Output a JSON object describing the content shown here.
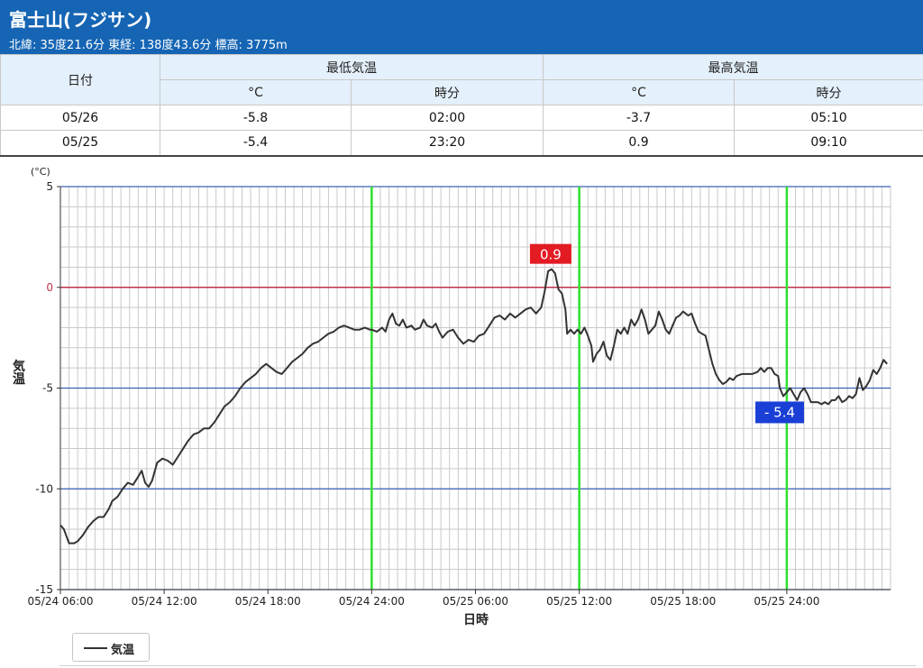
{
  "header": {
    "title": "富士山(フジサン)",
    "subtitle": "北緯: 35度21.6分 東経: 138度43.6分 標高: 3775m"
  },
  "table": {
    "date_header": "日付",
    "min_header": "最低気温",
    "max_header": "最高気温",
    "unit_header": "°C",
    "time_header": "時分",
    "rows": [
      {
        "date": "05/26",
        "min_c": "-5.8",
        "min_time": "02:00",
        "max_c": "-3.7",
        "max_time": "05:10"
      },
      {
        "date": "05/25",
        "min_c": "-5.4",
        "min_time": "23:20",
        "max_c": "0.9",
        "max_time": "09:10"
      }
    ]
  },
  "chart_data": {
    "type": "line",
    "unit_label": "(°C)",
    "ylabel": "気温",
    "xlabel": "日時",
    "ylim": [
      -15,
      5
    ],
    "y_ticks": [
      5,
      0,
      -5,
      -10,
      -15
    ],
    "x_range_hours": [
      0,
      48
    ],
    "x_ticks": [
      {
        "label": "05/24 06:00",
        "hour": 0
      },
      {
        "label": "05/24 12:00",
        "hour": 6
      },
      {
        "label": "05/24 18:00",
        "hour": 12
      },
      {
        "label": "05/24 24:00",
        "hour": 18
      },
      {
        "label": "05/25 06:00",
        "hour": 24
      },
      {
        "label": "05/25 12:00",
        "hour": 30
      },
      {
        "label": "05/25 18:00",
        "hour": 36
      },
      {
        "label": "05/25 24:00",
        "hour": 42
      }
    ],
    "day_boundaries_hours": [
      18,
      30,
      42
    ],
    "zero_line": 0,
    "grid": true,
    "legend_position": "bottom-left",
    "series": [
      {
        "name": "気温",
        "color": "#333333",
        "points": [
          [
            0,
            -11.8
          ],
          [
            0.2,
            -12.0
          ],
          [
            0.5,
            -12.7
          ],
          [
            0.8,
            -12.7
          ],
          [
            1.0,
            -12.6
          ],
          [
            1.3,
            -12.3
          ],
          [
            1.6,
            -11.9
          ],
          [
            1.9,
            -11.6
          ],
          [
            2.2,
            -11.4
          ],
          [
            2.5,
            -11.4
          ],
          [
            2.8,
            -11.0
          ],
          [
            3.0,
            -10.6
          ],
          [
            3.3,
            -10.4
          ],
          [
            3.6,
            -10.0
          ],
          [
            3.9,
            -9.7
          ],
          [
            4.2,
            -9.8
          ],
          [
            4.5,
            -9.4
          ],
          [
            4.7,
            -9.1
          ],
          [
            4.9,
            -9.7
          ],
          [
            5.1,
            -9.9
          ],
          [
            5.3,
            -9.6
          ],
          [
            5.6,
            -8.7
          ],
          [
            5.9,
            -8.5
          ],
          [
            6.2,
            -8.6
          ],
          [
            6.5,
            -8.8
          ],
          [
            6.8,
            -8.4
          ],
          [
            7.1,
            -8.0
          ],
          [
            7.4,
            -7.6
          ],
          [
            7.7,
            -7.3
          ],
          [
            8.0,
            -7.2
          ],
          [
            8.3,
            -7.0
          ],
          [
            8.6,
            -7.0
          ],
          [
            8.9,
            -6.7
          ],
          [
            9.2,
            -6.3
          ],
          [
            9.5,
            -5.9
          ],
          [
            9.8,
            -5.7
          ],
          [
            10.1,
            -5.4
          ],
          [
            10.4,
            -5.0
          ],
          [
            10.7,
            -4.7
          ],
          [
            11.0,
            -4.5
          ],
          [
            11.3,
            -4.3
          ],
          [
            11.6,
            -4.0
          ],
          [
            11.9,
            -3.8
          ],
          [
            12.2,
            -4.0
          ],
          [
            12.5,
            -4.2
          ],
          [
            12.8,
            -4.3
          ],
          [
            13.1,
            -4.0
          ],
          [
            13.4,
            -3.7
          ],
          [
            13.7,
            -3.5
          ],
          [
            14.0,
            -3.3
          ],
          [
            14.3,
            -3.0
          ],
          [
            14.6,
            -2.8
          ],
          [
            14.9,
            -2.7
          ],
          [
            15.2,
            -2.5
          ],
          [
            15.5,
            -2.3
          ],
          [
            15.8,
            -2.2
          ],
          [
            16.1,
            -2.0
          ],
          [
            16.4,
            -1.9
          ],
          [
            16.7,
            -2.0
          ],
          [
            17.0,
            -2.1
          ],
          [
            17.3,
            -2.1
          ],
          [
            17.6,
            -2.0
          ],
          [
            17.9,
            -2.1
          ],
          [
            18.0,
            -2.1
          ],
          [
            18.3,
            -2.2
          ],
          [
            18.6,
            -2.0
          ],
          [
            18.8,
            -2.2
          ],
          [
            19.0,
            -1.6
          ],
          [
            19.2,
            -1.3
          ],
          [
            19.4,
            -1.8
          ],
          [
            19.6,
            -1.9
          ],
          [
            19.8,
            -1.6
          ],
          [
            20.0,
            -2.0
          ],
          [
            20.3,
            -1.9
          ],
          [
            20.5,
            -2.1
          ],
          [
            20.8,
            -2.0
          ],
          [
            21.0,
            -1.6
          ],
          [
            21.2,
            -1.9
          ],
          [
            21.5,
            -2.0
          ],
          [
            21.7,
            -1.8
          ],
          [
            21.9,
            -2.2
          ],
          [
            22.1,
            -2.5
          ],
          [
            22.4,
            -2.2
          ],
          [
            22.7,
            -2.1
          ],
          [
            23.0,
            -2.5
          ],
          [
            23.3,
            -2.8
          ],
          [
            23.6,
            -2.6
          ],
          [
            23.9,
            -2.7
          ],
          [
            24.2,
            -2.4
          ],
          [
            24.5,
            -2.3
          ],
          [
            24.8,
            -1.9
          ],
          [
            25.1,
            -1.5
          ],
          [
            25.4,
            -1.4
          ],
          [
            25.7,
            -1.6
          ],
          [
            26.0,
            -1.3
          ],
          [
            26.3,
            -1.5
          ],
          [
            26.6,
            -1.3
          ],
          [
            26.9,
            -1.1
          ],
          [
            27.2,
            -1.0
          ],
          [
            27.5,
            -1.3
          ],
          [
            27.8,
            -1.0
          ],
          [
            28.0,
            -0.2
          ],
          [
            28.2,
            0.8
          ],
          [
            28.4,
            0.9
          ],
          [
            28.6,
            0.7
          ],
          [
            28.8,
            -0.1
          ],
          [
            29.0,
            -0.3
          ],
          [
            29.2,
            -1.1
          ],
          [
            29.3,
            -2.3
          ],
          [
            29.5,
            -2.1
          ],
          [
            29.7,
            -2.3
          ],
          [
            29.9,
            -2.1
          ],
          [
            30.1,
            -2.3
          ],
          [
            30.3,
            -2.0
          ],
          [
            30.5,
            -2.4
          ],
          [
            30.7,
            -2.9
          ],
          [
            30.8,
            -3.7
          ],
          [
            31.0,
            -3.3
          ],
          [
            31.2,
            -3.1
          ],
          [
            31.4,
            -2.7
          ],
          [
            31.6,
            -3.4
          ],
          [
            31.8,
            -3.6
          ],
          [
            32.0,
            -2.9
          ],
          [
            32.2,
            -2.1
          ],
          [
            32.4,
            -2.3
          ],
          [
            32.6,
            -2.0
          ],
          [
            32.8,
            -2.3
          ],
          [
            33.0,
            -1.6
          ],
          [
            33.2,
            -1.9
          ],
          [
            33.4,
            -1.6
          ],
          [
            33.6,
            -1.1
          ],
          [
            33.8,
            -1.6
          ],
          [
            34.0,
            -2.3
          ],
          [
            34.2,
            -2.1
          ],
          [
            34.4,
            -1.9
          ],
          [
            34.6,
            -1.2
          ],
          [
            34.8,
            -1.6
          ],
          [
            35.0,
            -2.1
          ],
          [
            35.2,
            -2.3
          ],
          [
            35.4,
            -1.9
          ],
          [
            35.6,
            -1.5
          ],
          [
            35.8,
            -1.4
          ],
          [
            36.0,
            -1.2
          ],
          [
            36.3,
            -1.4
          ],
          [
            36.5,
            -1.3
          ],
          [
            36.7,
            -1.8
          ],
          [
            36.9,
            -2.2
          ],
          [
            37.1,
            -2.3
          ],
          [
            37.3,
            -2.4
          ],
          [
            37.5,
            -3.1
          ],
          [
            37.7,
            -3.8
          ],
          [
            37.9,
            -4.3
          ],
          [
            38.1,
            -4.6
          ],
          [
            38.3,
            -4.8
          ],
          [
            38.5,
            -4.7
          ],
          [
            38.7,
            -4.5
          ],
          [
            38.9,
            -4.6
          ],
          [
            39.1,
            -4.4
          ],
          [
            39.4,
            -4.3
          ],
          [
            39.7,
            -4.3
          ],
          [
            40.0,
            -4.3
          ],
          [
            40.3,
            -4.2
          ],
          [
            40.5,
            -4.0
          ],
          [
            40.7,
            -4.2
          ],
          [
            40.9,
            -4.0
          ],
          [
            41.1,
            -4.0
          ],
          [
            41.3,
            -4.3
          ],
          [
            41.5,
            -4.4
          ],
          [
            41.6,
            -5.0
          ],
          [
            41.8,
            -5.4
          ],
          [
            42.0,
            -5.2
          ],
          [
            42.2,
            -5.0
          ],
          [
            42.4,
            -5.3
          ],
          [
            42.6,
            -5.6
          ],
          [
            42.8,
            -5.2
          ],
          [
            43.0,
            -5.0
          ],
          [
            43.2,
            -5.3
          ],
          [
            43.4,
            -5.7
          ],
          [
            43.6,
            -5.7
          ],
          [
            43.8,
            -5.7
          ],
          [
            44.0,
            -5.8
          ],
          [
            44.2,
            -5.7
          ],
          [
            44.4,
            -5.8
          ],
          [
            44.6,
            -5.6
          ],
          [
            44.8,
            -5.6
          ],
          [
            45.0,
            -5.4
          ],
          [
            45.2,
            -5.7
          ],
          [
            45.4,
            -5.6
          ],
          [
            45.6,
            -5.4
          ],
          [
            45.8,
            -5.5
          ],
          [
            46.0,
            -5.3
          ],
          [
            46.2,
            -4.5
          ],
          [
            46.4,
            -5.1
          ],
          [
            46.6,
            -4.9
          ],
          [
            46.8,
            -4.6
          ],
          [
            47.0,
            -4.1
          ],
          [
            47.2,
            -4.3
          ],
          [
            47.4,
            -4.0
          ],
          [
            47.6,
            -3.6
          ],
          [
            47.8,
            -3.8
          ]
        ]
      }
    ],
    "annotations": [
      {
        "label": "0.9",
        "color": "#e31b23"
      },
      {
        "label": "- 5.4",
        "color": "#1a3fd6"
      }
    ]
  },
  "legend": {
    "label": "気温"
  }
}
